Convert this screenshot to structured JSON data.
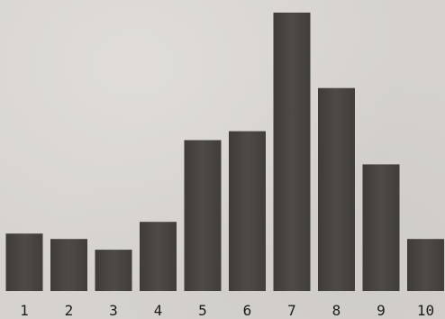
{
  "chart_data": {
    "type": "bar",
    "categories": [
      "1",
      "2",
      "3",
      "4",
      "5",
      "6",
      "7",
      "8",
      "9",
      "10"
    ],
    "values": [
      64,
      58,
      46,
      77,
      168,
      178,
      310,
      226,
      141,
      58
    ],
    "ylim": [
      0,
      320
    ],
    "bar_color": "#4a4644",
    "label_color": "#1c1c1c",
    "background_color": "#d6d3cf",
    "grid": false
  }
}
